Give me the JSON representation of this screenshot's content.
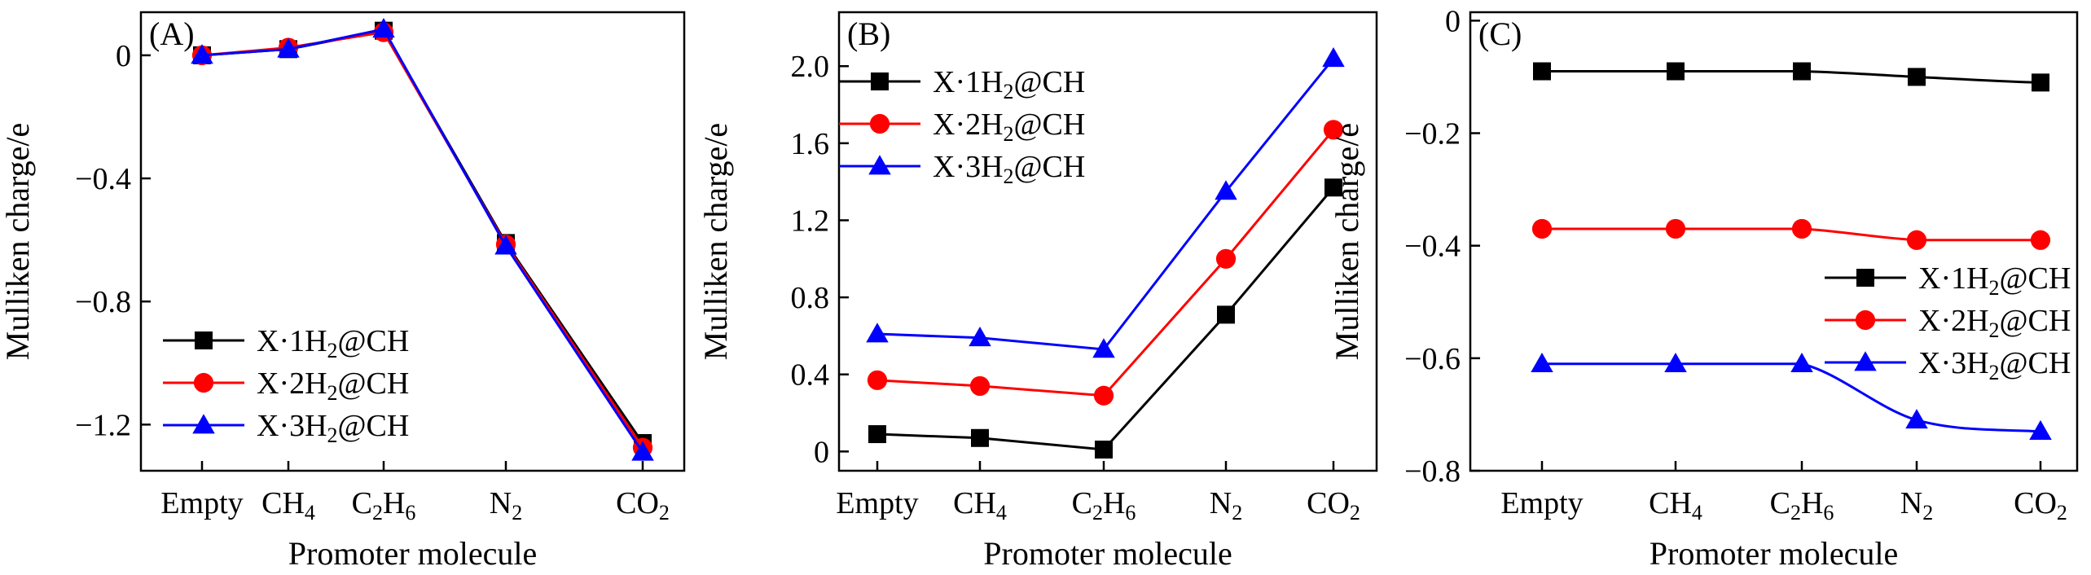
{
  "figure": {
    "colors": {
      "s1": "#000000",
      "s2": "#ff0000",
      "s3": "#0000ff"
    },
    "markers": [
      "square",
      "circle",
      "triangle"
    ]
  },
  "chart_data": [
    {
      "type": "line",
      "panel": "(A)",
      "categories": [
        {
          "base": "Empty",
          "sub": []
        },
        {
          "base": "CH",
          "sub": [
            "4"
          ]
        },
        {
          "base": "C",
          "sub": [
            "2",
            "H",
            "6"
          ]
        },
        {
          "base": "N",
          "sub": [
            "2"
          ]
        },
        {
          "base": "CO",
          "sub": [
            "2"
          ]
        }
      ],
      "xlabel": "Promoter molecule",
      "ylabel": "Mulliken charge/e",
      "ylim": [
        -1.35,
        0.14
      ],
      "yticks": [
        0,
        -0.4,
        -0.8,
        -1.2
      ],
      "ytick_labels": [
        "0",
        "−0.4",
        "−0.8",
        "−1.2"
      ],
      "curve": "linear",
      "legend_position": "lower-left",
      "series": [
        {
          "name": "X·1H₂@CH",
          "name_parts": [
            "X·1H",
            "2",
            "@CH"
          ],
          "values": [
            0.0,
            0.02,
            0.08,
            -0.61,
            -1.26
          ]
        },
        {
          "name": "X·2H₂@CH",
          "name_parts": [
            "X·2H",
            "2",
            "@CH"
          ],
          "values": [
            0.0,
            0.025,
            0.075,
            -0.615,
            -1.275
          ]
        },
        {
          "name": "X·3H₂@CH",
          "name_parts": [
            "X·3H",
            "2",
            "@CH"
          ],
          "values": [
            0.0,
            0.02,
            0.085,
            -0.62,
            -1.29
          ]
        }
      ]
    },
    {
      "type": "line",
      "panel": "(B)",
      "categories": [
        {
          "base": "Empty",
          "sub": []
        },
        {
          "base": "CH",
          "sub": [
            "4"
          ]
        },
        {
          "base": "C",
          "sub": [
            "2",
            "H",
            "6"
          ]
        },
        {
          "base": "N",
          "sub": [
            "2"
          ]
        },
        {
          "base": "CO",
          "sub": [
            "2"
          ]
        }
      ],
      "xlabel": "Promoter molecule",
      "ylabel": "Mulliken charge/e",
      "ylim": [
        -0.1,
        2.28
      ],
      "yticks": [
        0,
        0.4,
        0.8,
        1.2,
        1.6,
        2.0
      ],
      "ytick_labels": [
        "0",
        "0.4",
        "0.8",
        "1.2",
        "1.6",
        "2.0"
      ],
      "curve": "linear",
      "legend_position": "top-left",
      "series": [
        {
          "name": "X·1H₂@CH",
          "name_parts": [
            "X·1H",
            "2",
            "@CH"
          ],
          "values": [
            0.09,
            0.07,
            0.01,
            0.71,
            1.37
          ]
        },
        {
          "name": "X·2H₂@CH",
          "name_parts": [
            "X·2H",
            "2",
            "@CH"
          ],
          "values": [
            0.37,
            0.34,
            0.29,
            1.0,
            1.67
          ]
        },
        {
          "name": "X·3H₂@CH",
          "name_parts": [
            "X·3H",
            "2",
            "@CH"
          ],
          "values": [
            0.61,
            0.59,
            0.53,
            1.35,
            2.04
          ]
        }
      ]
    },
    {
      "type": "line",
      "panel": "(C)",
      "categories": [
        {
          "base": "Empty",
          "sub": []
        },
        {
          "base": "CH",
          "sub": [
            "4"
          ]
        },
        {
          "base": "C",
          "sub": [
            "2",
            "H",
            "6"
          ]
        },
        {
          "base": "N",
          "sub": [
            "2"
          ]
        },
        {
          "base": "CO",
          "sub": [
            "2"
          ]
        }
      ],
      "xlabel": "Promoter molecule",
      "ylabel": "Mulliken charge/e",
      "ylim": [
        -0.8,
        0.015
      ],
      "yticks": [
        0,
        -0.2,
        -0.4,
        -0.6,
        -0.8
      ],
      "ytick_labels": [
        "0",
        "−0.2",
        "−0.4",
        "−0.6",
        "−0.8"
      ],
      "curve": "smooth",
      "legend_position": "center-right",
      "series": [
        {
          "name": "X·1H₂@CH",
          "name_parts": [
            "X·1H",
            "2",
            "@CH"
          ],
          "values": [
            -0.09,
            -0.09,
            -0.09,
            -0.1,
            -0.11
          ]
        },
        {
          "name": "X·2H₂@CH",
          "name_parts": [
            "X·2H",
            "2",
            "@CH"
          ],
          "values": [
            -0.37,
            -0.37,
            -0.37,
            -0.39,
            -0.39
          ]
        },
        {
          "name": "X·3H₂@CH",
          "name_parts": [
            "X·3H",
            "2",
            "@CH"
          ],
          "values": [
            -0.61,
            -0.61,
            -0.61,
            -0.71,
            -0.73
          ]
        }
      ]
    }
  ]
}
